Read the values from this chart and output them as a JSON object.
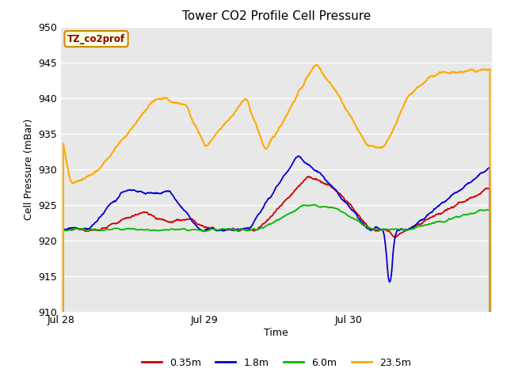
{
  "title": "Tower CO2 Profile Cell Pressure",
  "xlabel": "Time",
  "ylabel": "Cell Pressure (mBar)",
  "ylim": [
    910,
    950
  ],
  "yticks": [
    910,
    915,
    920,
    925,
    930,
    935,
    940,
    945,
    950
  ],
  "fig_bg_color": "#ffffff",
  "axes_bg_color": "#e8e8e8",
  "legend_label": "TZ_co2prof",
  "series_labels": [
    "0.35m",
    "1.8m",
    "6.0m",
    "23.5m"
  ],
  "series_colors": [
    "#cc0000",
    "#0000cc",
    "#00bb00",
    "#ffaa00"
  ],
  "xtick_labels": [
    "Jul 28",
    "Jul 29",
    "Jul 30"
  ],
  "xtick_positions": [
    0,
    288,
    576
  ],
  "n_points": 864
}
